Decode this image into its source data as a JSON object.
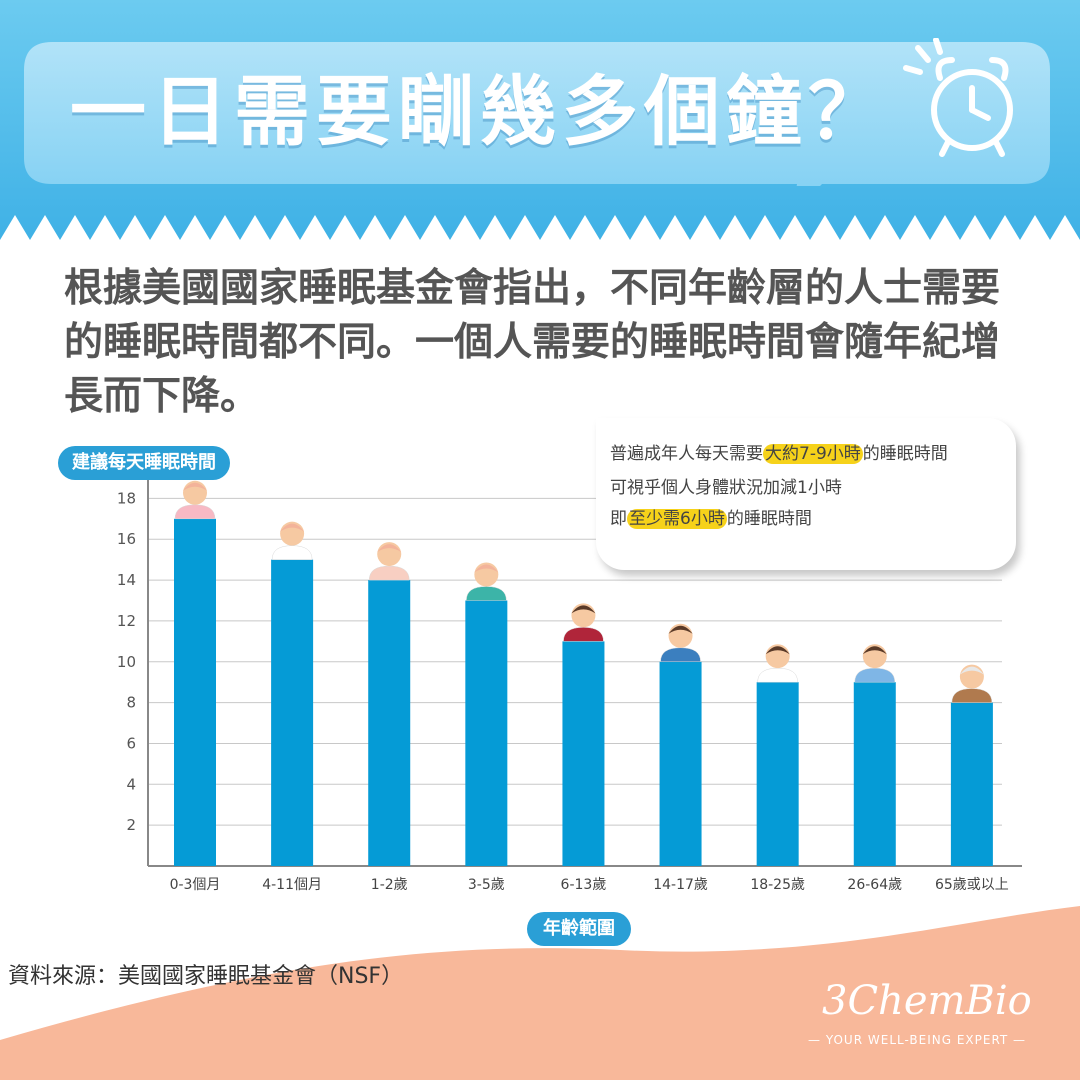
{
  "title": "一日需要瞓幾多個鐘？",
  "intro": "根據美國國家睡眠基金會指出，不同年齡層的人士需要的睡眠時間都不同。一個人需要的睡眠時間會隨年紀增長而下降。",
  "callout": {
    "line1_pre": "普遍成年人每天需要",
    "line1_hl": "大約7-9小時",
    "line1_post": "的睡眠時間",
    "line2": "可視乎個人身體狀況加減1小時",
    "line3_pre": "即",
    "line3_hl": "至少需6小時",
    "line3_post": "的睡眠時間"
  },
  "source": "資料來源：美國國家睡眠基金會（NSF）",
  "brand": {
    "logo": "3ChemBio",
    "tagline": "— YOUR WELL-BEING EXPERT —"
  },
  "colors": {
    "bar": "#059bd6",
    "header": "#5bc2ec",
    "accent": "#2a9fd6",
    "highlight": "#f6d21a",
    "footer": "#f8b89a"
  },
  "chart_data": {
    "type": "bar",
    "ylabel": "建議每天睡眠時間",
    "xlabel": "年齡範圍",
    "categories": [
      "0-3個月",
      "4-11個月",
      "1-2歲",
      "3-5歲",
      "6-13歲",
      "14-17歲",
      "18-25歲",
      "26-64歲",
      "65歲或以上"
    ],
    "values": [
      17,
      15,
      14,
      13,
      11,
      10,
      9,
      9,
      8
    ],
    "ylim": [
      0,
      18
    ],
    "yticks": [
      2,
      4,
      6,
      8,
      10,
      12,
      14,
      16,
      18
    ],
    "grid": true,
    "icons": [
      "newborn-icon",
      "baby-icon",
      "toddler-icon",
      "child-blocks-icon",
      "boy-icon",
      "teen-icon",
      "young-adult-icon",
      "adult-icon",
      "elder-icon"
    ]
  }
}
